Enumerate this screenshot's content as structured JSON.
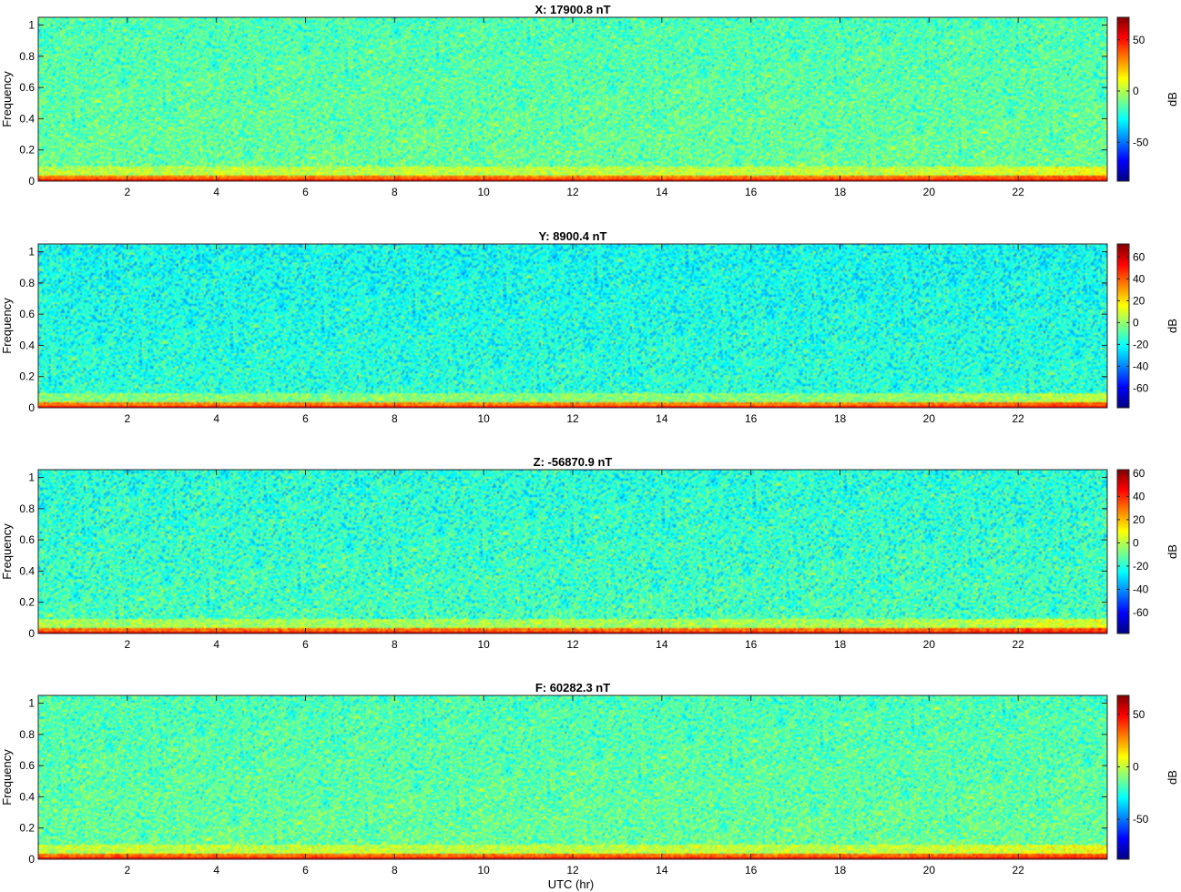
{
  "figure": {
    "xlabel": "UTC (hr)"
  },
  "chart_data": [
    {
      "type": "heatmap",
      "title": "X: 17900.8 nT",
      "xlabel": "",
      "ylabel": "Frequency",
      "colorbar_label": "dB",
      "xlim": [
        0,
        24
      ],
      "ylim": [
        0,
        1.05
      ],
      "xticks": [
        2,
        4,
        6,
        8,
        10,
        12,
        14,
        16,
        18,
        20,
        22
      ],
      "yticks": [
        0,
        0.2,
        0.4,
        0.6,
        0.8,
        1
      ],
      "clim": [
        -88,
        72
      ],
      "cticks": [
        -50,
        0,
        50
      ],
      "background_db": -12,
      "low_freq_db": 48,
      "colormap": "jet"
    },
    {
      "type": "heatmap",
      "title": "Y: 8900.4 nT",
      "xlabel": "",
      "ylabel": "Frequency",
      "colorbar_label": "dB",
      "xlim": [
        0,
        24
      ],
      "ylim": [
        0,
        1.05
      ],
      "xticks": [
        2,
        4,
        6,
        8,
        10,
        12,
        14,
        16,
        18,
        20,
        22
      ],
      "yticks": [
        0,
        0.2,
        0.4,
        0.6,
        0.8,
        1
      ],
      "clim": [
        -78,
        72
      ],
      "cticks": [
        -60,
        -40,
        -20,
        0,
        20,
        40,
        60
      ],
      "background_db": -16,
      "low_freq_db": 48,
      "colormap": "jet"
    },
    {
      "type": "heatmap",
      "title": "Z: -56870.9 nT",
      "xlabel": "",
      "ylabel": "Frequency",
      "colorbar_label": "dB",
      "xlim": [
        0,
        24
      ],
      "ylim": [
        0,
        1.05
      ],
      "xticks": [
        2,
        4,
        6,
        8,
        10,
        12,
        14,
        16,
        18,
        20,
        22
      ],
      "yticks": [
        0,
        0.2,
        0.4,
        0.6,
        0.8,
        1
      ],
      "clim": [
        -78,
        63
      ],
      "cticks": [
        -60,
        -40,
        -20,
        0,
        20,
        40,
        60
      ],
      "background_db": -16,
      "low_freq_db": 44,
      "colormap": "jet"
    },
    {
      "type": "heatmap",
      "title": "F: 60282.3 nT",
      "xlabel": "UTC (hr)",
      "ylabel": "Frequency",
      "colorbar_label": "dB",
      "xlim": [
        0,
        24
      ],
      "ylim": [
        0,
        1.05
      ],
      "xticks": [
        2,
        4,
        6,
        8,
        10,
        12,
        14,
        16,
        18,
        20,
        22
      ],
      "yticks": [
        0,
        0.2,
        0.4,
        0.6,
        0.8,
        1
      ],
      "clim": [
        -88,
        68
      ],
      "cticks": [
        -50,
        0,
        50
      ],
      "background_db": -14,
      "low_freq_db": 46,
      "colormap": "jet"
    }
  ]
}
